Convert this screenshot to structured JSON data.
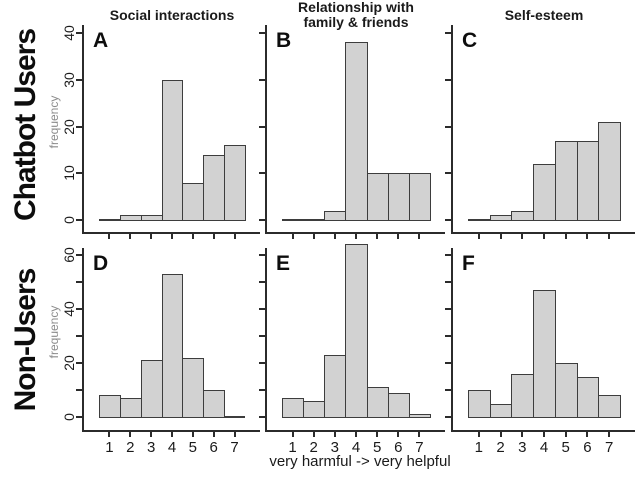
{
  "figure": {
    "caption": "very harmful -> very helpful",
    "background": "#ffffff"
  },
  "columns": [
    {
      "title": "Social interactions"
    },
    {
      "title": "Relationship with\nfamily & friends"
    },
    {
      "title": "Self-esteem"
    }
  ],
  "rows": [
    {
      "label": "Chatbot Users",
      "ylabel": "frequency"
    },
    {
      "label": "Non-Users",
      "ylabel": "frequency"
    }
  ],
  "xaxis": {
    "tick_labels": [
      "1",
      "2",
      "3",
      "4",
      "5",
      "6",
      "7"
    ],
    "caption": "very harmful -> very helpful"
  },
  "style": {
    "bar_fill": "#d2d2d2",
    "bar_border": "#3d3d3d",
    "axis_color": "#2b2b2b",
    "frequency_label_color": "#8c8c8c",
    "text_color": "#1a1a1a"
  },
  "chart_data": [
    {
      "type": "bar",
      "panel": "A",
      "row": "Chatbot Users",
      "column": "Social interactions",
      "categories": [
        "1",
        "2",
        "3",
        "4",
        "5",
        "6",
        "7"
      ],
      "values": [
        0,
        1,
        1,
        30,
        8,
        14,
        16
      ],
      "ylabel": "frequency",
      "ylim": [
        0,
        42
      ],
      "yticks": [
        0,
        10,
        20,
        30,
        40
      ],
      "ytick_labels": [
        "0",
        "10",
        "20",
        "30",
        "40"
      ]
    },
    {
      "type": "bar",
      "panel": "B",
      "row": "Chatbot Users",
      "column": "Relationship with family & friends",
      "categories": [
        "1",
        "2",
        "3",
        "4",
        "5",
        "6",
        "7"
      ],
      "values": [
        0,
        0,
        2,
        38,
        10,
        10,
        10
      ],
      "ylabel": "frequency",
      "ylim": [
        0,
        42
      ],
      "yticks": [
        0,
        10,
        20,
        30,
        40
      ],
      "ytick_labels": []
    },
    {
      "type": "bar",
      "panel": "C",
      "row": "Chatbot Users",
      "column": "Self-esteem",
      "categories": [
        "1",
        "2",
        "3",
        "4",
        "5",
        "6",
        "7"
      ],
      "values": [
        0,
        1,
        2,
        12,
        17,
        17,
        21
      ],
      "ylabel": "frequency",
      "ylim": [
        0,
        42
      ],
      "yticks": [
        0,
        10,
        20,
        30,
        40
      ],
      "ytick_labels": []
    },
    {
      "type": "bar",
      "panel": "D",
      "row": "Non-Users",
      "column": "Social interactions",
      "categories": [
        "1",
        "2",
        "3",
        "4",
        "5",
        "6",
        "7"
      ],
      "values": [
        8,
        7,
        21,
        53,
        22,
        10,
        0
      ],
      "ylabel": "frequency",
      "ylim": [
        0,
        63
      ],
      "yticks": [
        0,
        10,
        20,
        30,
        40,
        50,
        60
      ],
      "ytick_labels": [
        "0",
        "20",
        "40",
        "60"
      ]
    },
    {
      "type": "bar",
      "panel": "E",
      "row": "Non-Users",
      "column": "Relationship with family & friends",
      "categories": [
        "1",
        "2",
        "3",
        "4",
        "5",
        "6",
        "7"
      ],
      "values": [
        7,
        6,
        23,
        64,
        11,
        9,
        1
      ],
      "ylabel": "frequency",
      "ylim": [
        0,
        63
      ],
      "yticks": [
        0,
        10,
        20,
        30,
        40,
        50,
        60
      ],
      "ytick_labels": []
    },
    {
      "type": "bar",
      "panel": "F",
      "row": "Non-Users",
      "column": "Self-esteem",
      "categories": [
        "1",
        "2",
        "3",
        "4",
        "5",
        "6",
        "7"
      ],
      "values": [
        10,
        5,
        16,
        47,
        20,
        15,
        8
      ],
      "ylabel": "frequency",
      "ylim": [
        0,
        63
      ],
      "yticks": [
        0,
        10,
        20,
        30,
        40,
        50,
        60
      ],
      "ytick_labels": []
    }
  ]
}
